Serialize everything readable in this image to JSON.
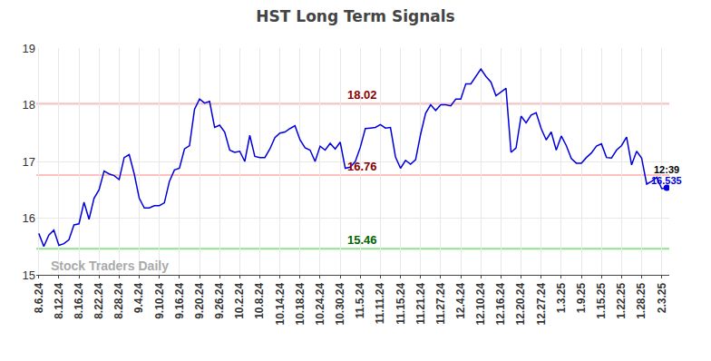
{
  "chart_data": {
    "type": "line",
    "title": "HST Long Term Signals",
    "color": "#0000dd",
    "grid": true,
    "ylim": [
      15,
      19
    ],
    "yticks": [
      15,
      16,
      17,
      18,
      19
    ],
    "categories": [
      "8.6.24",
      null,
      null,
      null,
      "8.12.24",
      null,
      null,
      null,
      "8.16.24",
      null,
      null,
      null,
      "8.22.24",
      null,
      null,
      null,
      "8.28.24",
      null,
      null,
      null,
      "9.4.24",
      null,
      null,
      null,
      "9.10.24",
      null,
      null,
      null,
      "9.16.24",
      null,
      null,
      null,
      "9.20.24",
      null,
      null,
      null,
      "9.26.24",
      null,
      null,
      null,
      "10.2.24",
      null,
      null,
      null,
      "10.8.24",
      null,
      null,
      null,
      "10.14.24",
      null,
      null,
      null,
      "10.18.24",
      null,
      null,
      null,
      "10.24.24",
      null,
      null,
      null,
      "10.30.24",
      null,
      null,
      null,
      "11.5.24",
      null,
      null,
      null,
      "11.11.24",
      null,
      null,
      null,
      "11.15.24",
      null,
      null,
      null,
      "11.21.24",
      null,
      null,
      null,
      "11.27.24",
      null,
      null,
      null,
      "12.4.24",
      null,
      null,
      null,
      "12.10.24",
      null,
      null,
      null,
      "12.16.24",
      null,
      null,
      null,
      "12.20.24",
      null,
      null,
      null,
      "12.27.24",
      null,
      null,
      null,
      "1.3.25",
      null,
      null,
      null,
      "1.9.25",
      null,
      null,
      null,
      "1.15.25",
      null,
      null,
      null,
      "1.22.25",
      null,
      null,
      null,
      "1.28.25",
      null,
      null,
      null,
      "2.3.25",
      null
    ],
    "values": [
      15.73,
      15.5,
      15.7,
      15.79,
      15.52,
      15.55,
      15.62,
      15.88,
      15.9,
      16.28,
      15.98,
      16.35,
      16.5,
      16.83,
      16.78,
      16.75,
      16.68,
      17.07,
      17.12,
      16.78,
      16.35,
      16.18,
      16.18,
      16.22,
      16.22,
      16.27,
      16.65,
      16.85,
      16.88,
      17.22,
      17.28,
      17.92,
      18.1,
      18.03,
      18.06,
      17.6,
      17.64,
      17.52,
      17.2,
      17.16,
      17.18,
      17.0,
      17.46,
      17.09,
      17.07,
      17.07,
      17.22,
      17.42,
      17.5,
      17.52,
      17.58,
      17.63,
      17.38,
      17.24,
      17.2,
      17.0,
      17.27,
      17.2,
      17.32,
      17.22,
      17.34,
      16.88,
      16.9,
      17.0,
      17.25,
      17.58,
      17.59,
      17.6,
      17.65,
      17.59,
      17.6,
      17.08,
      16.88,
      17.02,
      16.95,
      17.03,
      17.48,
      17.85,
      18.0,
      17.9,
      18.0,
      18.0,
      17.98,
      18.1,
      18.1,
      18.37,
      18.37,
      18.5,
      18.63,
      18.5,
      18.4,
      18.16,
      18.22,
      18.29,
      17.16,
      17.24,
      17.8,
      17.68,
      17.82,
      17.86,
      17.58,
      17.38,
      17.52,
      17.2,
      17.45,
      17.28,
      17.05,
      16.97,
      16.97,
      17.07,
      17.15,
      17.27,
      17.31,
      17.07,
      17.06,
      17.2,
      17.28,
      17.43,
      16.94,
      17.18,
      17.06,
      16.6,
      16.65,
      16.72,
      16.52,
      16.535
    ],
    "levels": [
      {
        "value": 18.02,
        "label": "18.02",
        "color": "#ffc0c0",
        "label_color": "#8b0000"
      },
      {
        "value": 16.76,
        "label": "16.76",
        "color": "#ffc0c0",
        "label_color": "#8b0000"
      },
      {
        "value": 15.46,
        "label": "15.46",
        "color": "#90e090",
        "label_color": "#006400"
      }
    ],
    "last_point": {
      "time": "12:39",
      "value_label": "16.535"
    },
    "watermark": "Stock Traders Daily"
  }
}
